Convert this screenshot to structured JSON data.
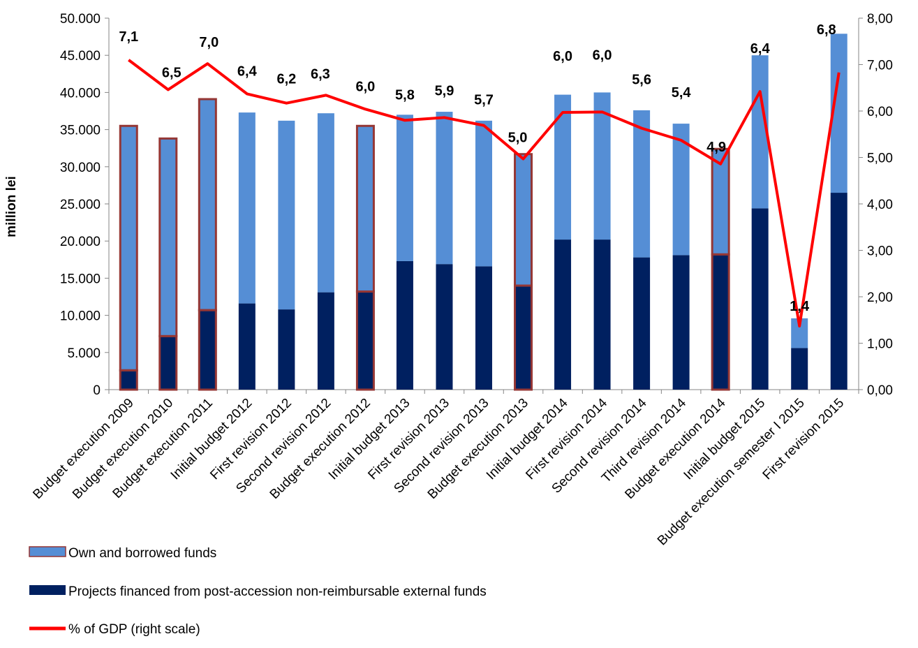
{
  "chart_data": {
    "type": "bar",
    "stacked": true,
    "categories": [
      "Budget execution 2009",
      "Budget execution 2010",
      "Budget execution 2011",
      "Initial budget 2012",
      "First revision 2012",
      "Second revision 2012",
      "Budget execution 2012",
      "Initial budget 2013",
      "First revision 2013",
      "Second revision 2013",
      "Budget execution 2013",
      "Initial budget 2014",
      "First revision 2014",
      "Second revision 2014",
      "Third revision 2014",
      "Budget execution 2014",
      "Initial budget 2015",
      "Budget execution semester I 2015",
      "First revision 2015"
    ],
    "highlighted": [
      true,
      true,
      true,
      false,
      false,
      false,
      true,
      false,
      false,
      false,
      true,
      false,
      false,
      false,
      false,
      true,
      false,
      false,
      false
    ],
    "series": [
      {
        "name": "Projects financed from post-accession non-reimbursable external funds",
        "type": "bar",
        "axis": "left",
        "color": "#002060",
        "values": [
          2600,
          7200,
          10700,
          11600,
          10800,
          13100,
          13200,
          17300,
          16900,
          16600,
          14000,
          20200,
          20200,
          17800,
          18100,
          18200,
          24400,
          5600,
          26500
        ]
      },
      {
        "name": "Own and borrowed funds",
        "type": "bar",
        "axis": "left",
        "color": "#558ED5",
        "values": [
          32900,
          26600,
          28400,
          25700,
          25400,
          24100,
          22300,
          19700,
          20500,
          19600,
          17700,
          19500,
          19800,
          19800,
          17700,
          14200,
          20600,
          4000,
          21400
        ]
      },
      {
        "name": "% of GDP (right scale)",
        "type": "line",
        "axis": "right",
        "color": "#FF0000",
        "values": [
          7.1,
          6.46,
          7.02,
          6.37,
          6.17,
          6.34,
          6.04,
          5.8,
          5.86,
          5.69,
          4.97,
          5.97,
          5.98,
          5.63,
          5.37,
          4.86,
          6.42,
          1.37,
          6.83
        ],
        "labels": [
          "7,1",
          "6,5",
          "7,0",
          "6,4",
          "6,2",
          "6,3",
          "6,0",
          "5,8",
          "5,9",
          "5,7",
          "5,0",
          "6,0",
          "6,0",
          "5,6",
          "5,4",
          "4,9",
          "6,4",
          "1,4",
          "6,8"
        ]
      }
    ],
    "ylabel": "million lei",
    "ylim": [
      0,
      50000
    ],
    "y_ticks": [
      "0",
      "5.000",
      "10.000",
      "15.000",
      "20.000",
      "25.000",
      "30.000",
      "35.000",
      "40.000",
      "45.000",
      "50.000"
    ],
    "y2lim": [
      0,
      8
    ],
    "y2_ticks": [
      "0,00",
      "1,00",
      "2,00",
      "3,00",
      "4,00",
      "5,00",
      "6,00",
      "7,00",
      "8,00"
    ],
    "grid": false,
    "legend_placement": "bottom-left",
    "highlight_border_color": "#953735"
  }
}
